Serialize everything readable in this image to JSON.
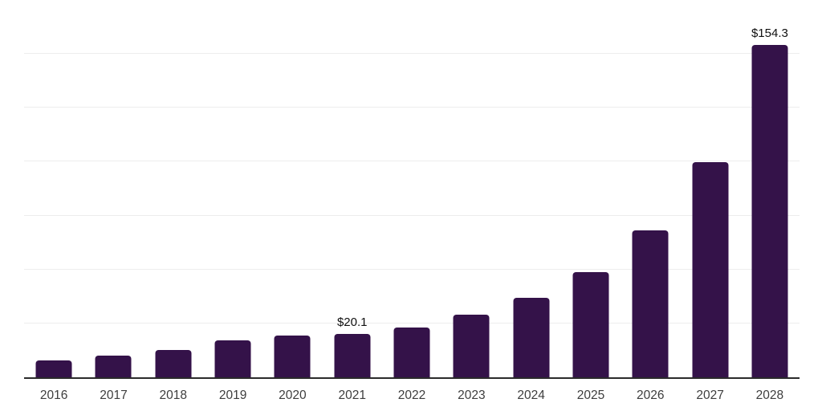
{
  "chart_data": {
    "type": "bar",
    "title": "",
    "xlabel": "",
    "ylabel": "",
    "categories": [
      "2016",
      "2017",
      "2018",
      "2019",
      "2020",
      "2021",
      "2022",
      "2023",
      "2024",
      "2025",
      "2026",
      "2027",
      "2028"
    ],
    "values": [
      7.7,
      10.1,
      12.7,
      17.0,
      19.5,
      20.1,
      23.2,
      29.2,
      36.8,
      48.9,
      68.1,
      99.9,
      154.3
    ],
    "value_labels": [
      "",
      "",
      "",
      "",
      "",
      "$20.1",
      "",
      "",
      "",
      "",
      "",
      "",
      "$154.3"
    ],
    "ylim": [
      0,
      175
    ],
    "gridline_step": 25,
    "grid": true,
    "legend": false,
    "y_axis_ticks_visible": false,
    "bar_color": "#341249",
    "grid_color": "#ededed",
    "axis_line_color": "#2b2b2b",
    "value_label_color": "#0f0f0f",
    "tick_label_color": "#3d3d3d",
    "background_color": "#ffffff"
  }
}
